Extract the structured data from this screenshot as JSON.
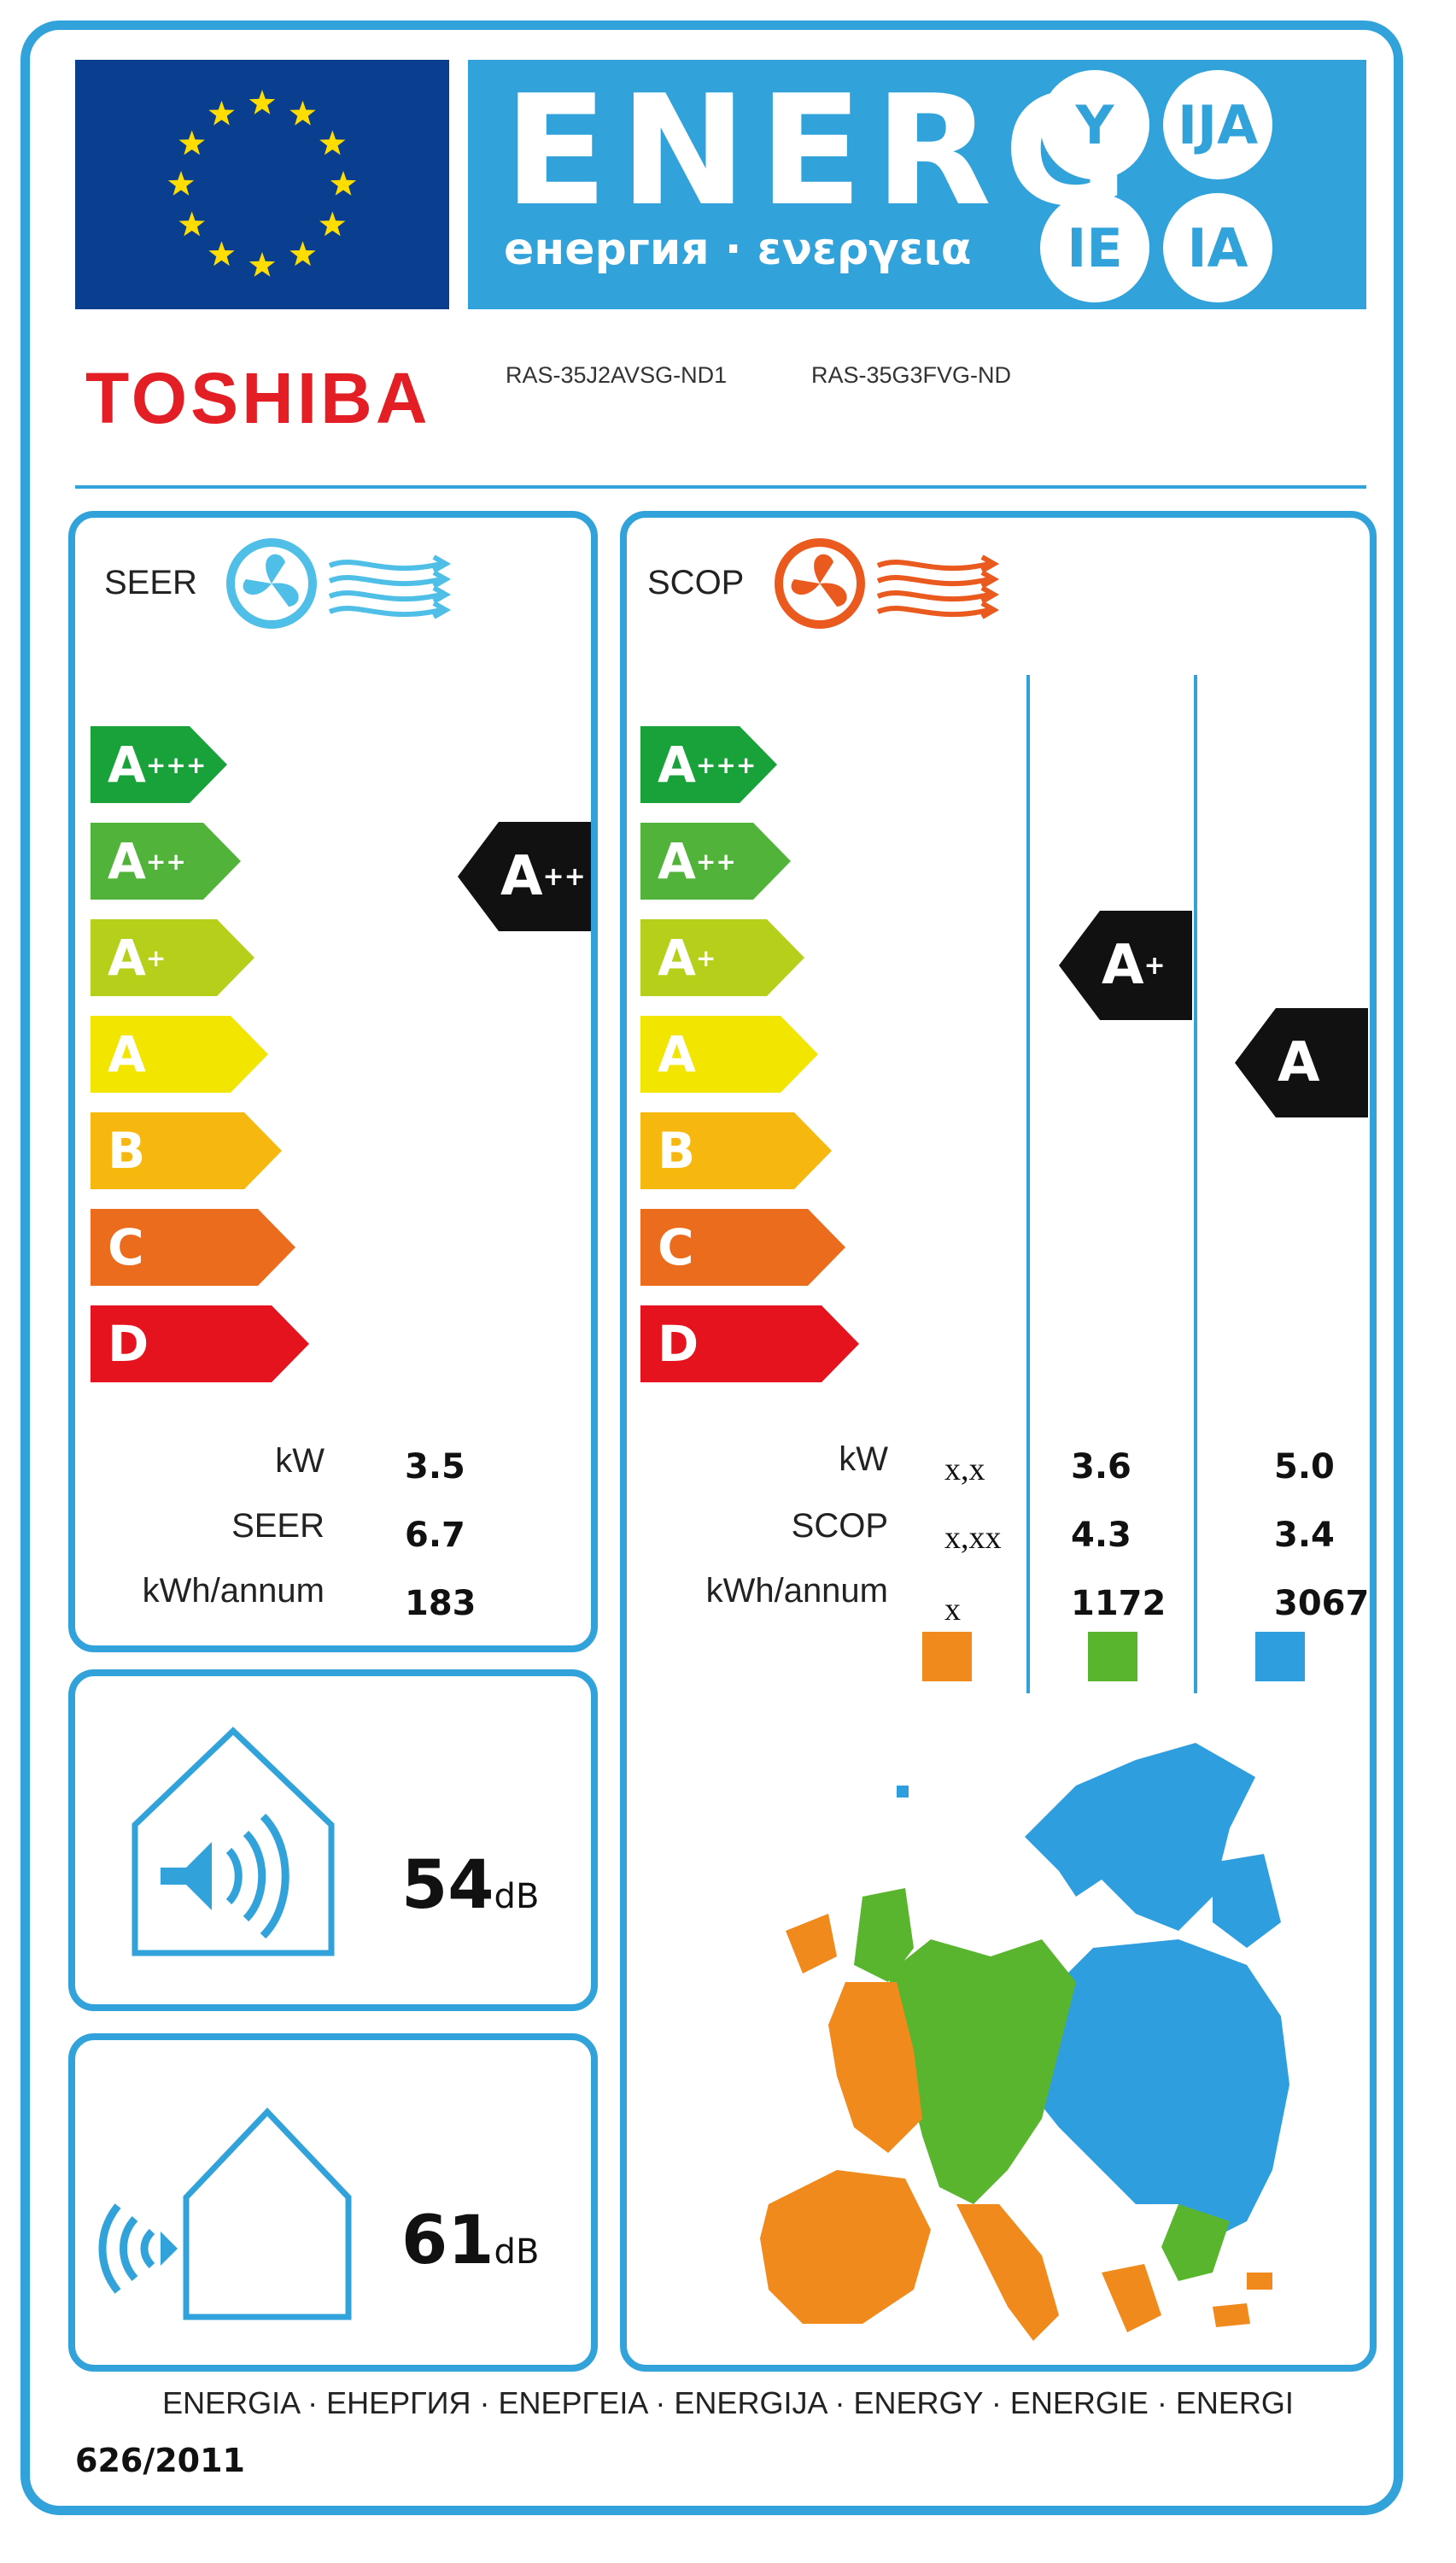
{
  "header": {
    "title": "ENERG",
    "subtitle": "енергия · ενεργεια",
    "lang_suffixes": [
      "Y",
      "IJA",
      "IE",
      "IA"
    ]
  },
  "brand": "TOSHIBA",
  "models": [
    "RAS-35J2AVSG-ND1",
    "RAS-35G3FVG-ND"
  ],
  "scale_classes": [
    {
      "main": "A",
      "sup": "+++",
      "color": "#19a13a"
    },
    {
      "main": "A",
      "sup": "++",
      "color": "#52b33a"
    },
    {
      "main": "A",
      "sup": "+",
      "color": "#b6cf1a"
    },
    {
      "main": "A",
      "sup": "",
      "color": "#f2e500"
    },
    {
      "main": "B",
      "sup": "",
      "color": "#f6b80f"
    },
    {
      "main": "C",
      "sup": "",
      "color": "#ea6c1c"
    },
    {
      "main": "D",
      "sup": "",
      "color": "#e4131e"
    }
  ],
  "cooling": {
    "label": "SEER",
    "rating": {
      "main": "A",
      "sup": "++"
    },
    "rows": [
      {
        "label": "kW",
        "value": "3.5"
      },
      {
        "label": "SEER",
        "value": "6.7"
      },
      {
        "label": "kWh/annum",
        "value": "183"
      }
    ]
  },
  "heating": {
    "label": "SCOP",
    "rating_average": {
      "main": "A",
      "sup": "+"
    },
    "rating_colder": {
      "main": "A",
      "sup": ""
    },
    "rows": [
      {
        "label": "kW",
        "warmer": "x,x",
        "average": "3.6",
        "colder": "5.0"
      },
      {
        "label": "SCOP",
        "warmer": "x,xx",
        "average": "4.3",
        "colder": "3.4"
      },
      {
        "label": "kWh/annum",
        "warmer": "x",
        "average": "1172",
        "colder": "3067"
      }
    ],
    "zone_colors": {
      "warmer": "#f08a1c",
      "average": "#5ab52e",
      "colder": "#2f9ede"
    }
  },
  "noise": {
    "indoor": {
      "value": "54",
      "unit": "dB"
    },
    "outdoor": {
      "value": "61",
      "unit": "dB"
    }
  },
  "footer": {
    "languages": "ENERGIA · ЕНЕРГИЯ · ΕΝΕΡΓΕΙΑ · ENERGIJA · ENERGY · ENERGIE · ENERGI",
    "regulation": "626/2011"
  },
  "colors": {
    "frame": "#32a3da",
    "eu_blue": "#0a3f8f",
    "eu_star": "#ffdd00",
    "brand_red": "#e31e24"
  }
}
